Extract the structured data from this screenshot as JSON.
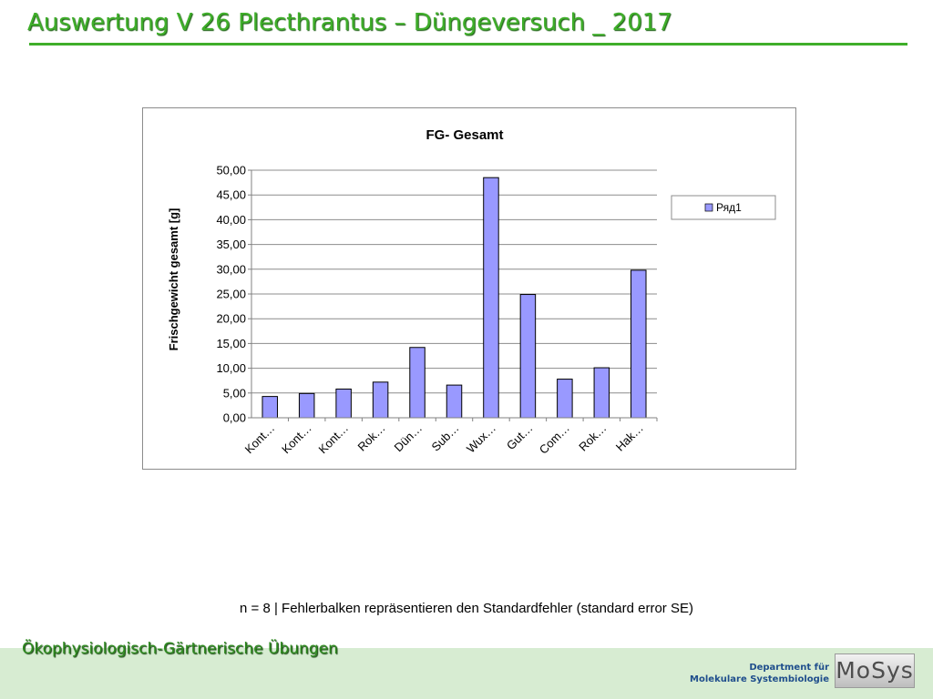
{
  "slide": {
    "title": "Auswertung V 26 Plecthrantus – Düngeversuch _ 2017",
    "footnote": "n = 8 | Fehlerbalken repräsentieren den Standardfehler (standard error SE)",
    "footer_left": "Ökophysiologisch-Gärtnerische Übungen",
    "footer_dept_line1": "Department für",
    "footer_dept_line2": "Molekulare Systembiologie",
    "logo_text": "MoSys",
    "colors": {
      "title_green": "#3fae2a",
      "bar_fill": "#9999ff",
      "footer_band": "#d7ecd2"
    }
  },
  "chart_data": {
    "type": "bar",
    "title": "FG- Gesamt",
    "xlabel": "",
    "ylabel": "Frischgewicht  gesamt [g]",
    "categories": [
      "Kont…",
      "Kont…",
      "Kont…",
      "Rok…",
      "Dün…",
      "Sub…",
      "Wux…",
      "Gut…",
      "Com…",
      "Rok…",
      "Hak…"
    ],
    "series": [
      {
        "name": "Ряд1",
        "color": "#9999ff",
        "values": [
          4.3,
          4.9,
          5.8,
          7.2,
          14.2,
          6.6,
          48.5,
          24.9,
          7.8,
          10.1,
          29.8
        ]
      }
    ],
    "ylim": [
      0,
      50
    ],
    "yticks": [
      "0,00",
      "5,00",
      "10,00",
      "15,00",
      "20,00",
      "25,00",
      "30,00",
      "35,00",
      "40,00",
      "45,00",
      "50,00"
    ],
    "grid": true,
    "legend": "right"
  }
}
